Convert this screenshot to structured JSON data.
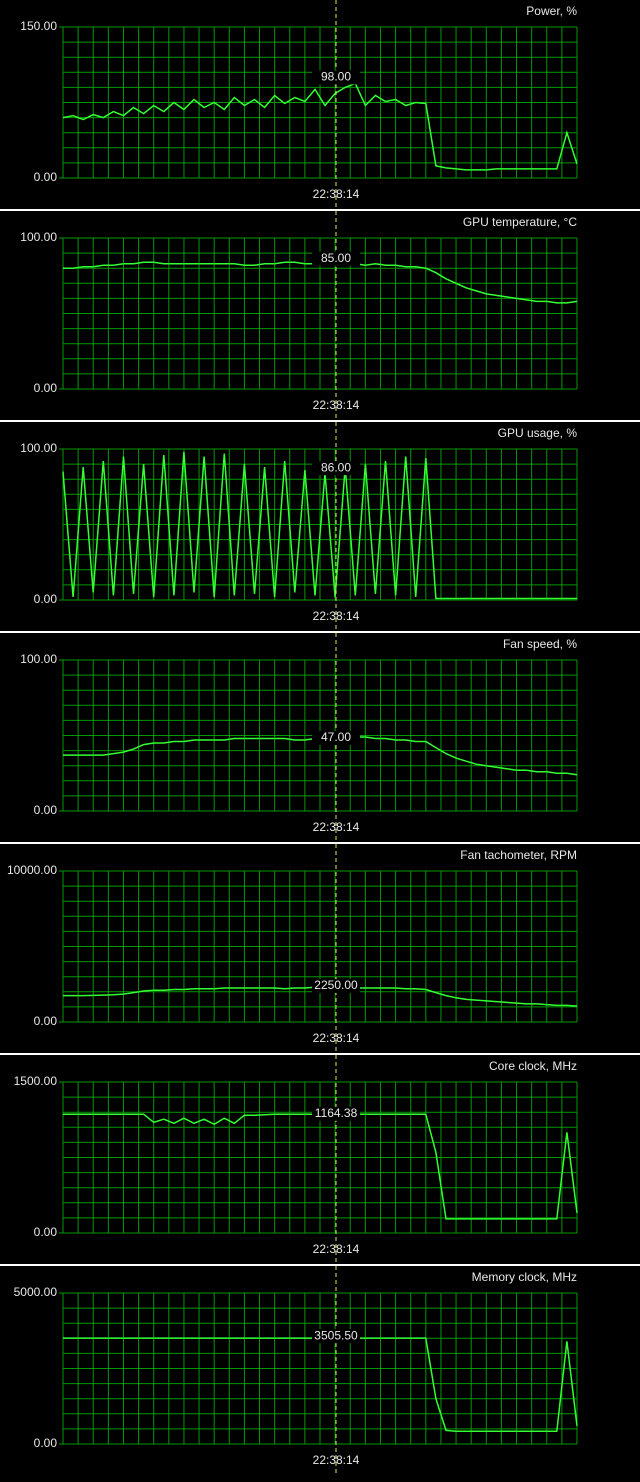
{
  "chart_data": [
    {
      "type": "line",
      "title": "Power, %",
      "color": "#33ff33",
      "grid": true,
      "ylim": [
        0,
        150
      ],
      "yticks": [
        {
          "value": 0,
          "label": "0.00"
        },
        {
          "value": 150,
          "label": "150.00"
        }
      ],
      "values": [
        60,
        62,
        58,
        63,
        60,
        66,
        62,
        70,
        64,
        72,
        66,
        75,
        68,
        78,
        70,
        75,
        68,
        80,
        72,
        78,
        70,
        82,
        74,
        80,
        76,
        88,
        72,
        84,
        90,
        94,
        72,
        82,
        76,
        78,
        72,
        75,
        74,
        12,
        10,
        9,
        8,
        8,
        8,
        9,
        9,
        9,
        9,
        9,
        9,
        9,
        45,
        14
      ],
      "cursor": {
        "x": "22:38:14",
        "value": 98,
        "value_label": "98.00"
      }
    },
    {
      "type": "line",
      "title": "GPU temperature, °C",
      "color": "#33ff33",
      "grid": true,
      "ylim": [
        0,
        100
      ],
      "yticks": [
        {
          "value": 0,
          "label": "0.00"
        },
        {
          "value": 100,
          "label": "100.00"
        }
      ],
      "values": [
        80,
        80,
        81,
        81,
        82,
        82,
        83,
        83,
        84,
        84,
        83,
        83,
        83,
        83,
        83,
        83,
        83,
        83,
        82,
        82,
        83,
        83,
        84,
        84,
        83,
        83,
        84,
        85,
        84,
        83,
        82,
        83,
        82,
        82,
        81,
        81,
        80,
        77,
        73,
        70,
        67,
        65,
        63,
        62,
        61,
        60,
        59,
        58,
        58,
        57,
        57,
        58
      ],
      "cursor": {
        "x": "22:38:14",
        "value": 85,
        "value_label": "85.00"
      }
    },
    {
      "type": "line",
      "title": "GPU usage, %",
      "color": "#33ff33",
      "grid": true,
      "ylim": [
        0,
        100
      ],
      "yticks": [
        {
          "value": 0,
          "label": "0.00"
        },
        {
          "value": 100,
          "label": "100.00"
        }
      ],
      "values": [
        85,
        2,
        88,
        5,
        92,
        3,
        95,
        4,
        90,
        2,
        96,
        3,
        98,
        5,
        95,
        2,
        97,
        3,
        90,
        4,
        88,
        2,
        92,
        5,
        86,
        3,
        84,
        2,
        88,
        3,
        90,
        4,
        92,
        3,
        95,
        2,
        94,
        1,
        1,
        1,
        1,
        1,
        1,
        1,
        1,
        1,
        1,
        1,
        1,
        1,
        1,
        1
      ],
      "cursor": {
        "x": "22:38:14",
        "value": 86,
        "value_label": "86.00"
      }
    },
    {
      "type": "line",
      "title": "Fan speed, %",
      "color": "#33ff33",
      "grid": true,
      "ylim": [
        0,
        100
      ],
      "yticks": [
        {
          "value": 0,
          "label": "0.00"
        },
        {
          "value": 100,
          "label": "100.00"
        }
      ],
      "values": [
        37,
        37,
        37,
        37,
        37,
        38,
        39,
        41,
        44,
        45,
        45,
        46,
        46,
        47,
        47,
        47,
        47,
        48,
        48,
        48,
        48,
        48,
        48,
        47,
        47,
        48,
        48,
        49,
        49,
        49,
        49,
        48,
        48,
        47,
        47,
        46,
        46,
        42,
        38,
        35,
        33,
        31,
        30,
        29,
        28,
        27,
        27,
        26,
        26,
        25,
        25,
        24
      ],
      "cursor": {
        "x": "22:38:14",
        "value": 47,
        "value_label": "47.00"
      }
    },
    {
      "type": "line",
      "title": "Fan tachometer, RPM",
      "color": "#33ff33",
      "grid": true,
      "ylim": [
        0,
        10000
      ],
      "yticks": [
        {
          "value": 0,
          "label": "0.00"
        },
        {
          "value": 10000,
          "label": "10000.00"
        }
      ],
      "values": [
        1750,
        1750,
        1750,
        1760,
        1780,
        1800,
        1850,
        1950,
        2050,
        2100,
        2100,
        2150,
        2150,
        2200,
        2200,
        2200,
        2250,
        2250,
        2250,
        2250,
        2250,
        2250,
        2200,
        2250,
        2250,
        2300,
        2300,
        2250,
        2250,
        2250,
        2250,
        2250,
        2250,
        2250,
        2200,
        2200,
        2150,
        1950,
        1750,
        1600,
        1500,
        1450,
        1400,
        1350,
        1300,
        1250,
        1200,
        1200,
        1150,
        1100,
        1100,
        1050
      ],
      "cursor": {
        "x": "22:38:14",
        "value": 2250,
        "value_label": "2250.00"
      }
    },
    {
      "type": "line",
      "title": "Core clock, MHz",
      "color": "#33ff33",
      "grid": true,
      "ylim": [
        0,
        1500
      ],
      "yticks": [
        {
          "value": 0,
          "label": "0.00"
        },
        {
          "value": 1500,
          "label": "1500.00"
        }
      ],
      "values": [
        1180,
        1180,
        1180,
        1180,
        1180,
        1180,
        1180,
        1180,
        1180,
        1100,
        1130,
        1090,
        1140,
        1090,
        1130,
        1080,
        1140,
        1090,
        1170,
        1170,
        1175,
        1180,
        1180,
        1180,
        1180,
        1180,
        1180,
        1180,
        1180,
        1180,
        1180,
        1180,
        1180,
        1180,
        1180,
        1180,
        1180,
        800,
        140,
        140,
        140,
        140,
        140,
        140,
        140,
        140,
        140,
        140,
        140,
        140,
        1000,
        200
      ],
      "cursor": {
        "x": "22:38:14",
        "value": 1164.38,
        "value_label": "1164.38"
      }
    },
    {
      "type": "line",
      "title": "Memory clock, MHz",
      "color": "#33ff33",
      "grid": true,
      "ylim": [
        0,
        5000
      ],
      "yticks": [
        {
          "value": 0,
          "label": "0.00"
        },
        {
          "value": 5000,
          "label": "5000.00"
        }
      ],
      "values": [
        3505.5,
        3505.5,
        3505.5,
        3505.5,
        3505.5,
        3505.5,
        3505.5,
        3505.5,
        3505.5,
        3505.5,
        3505.5,
        3505.5,
        3505.5,
        3505.5,
        3505.5,
        3505.5,
        3505.5,
        3505.5,
        3505.5,
        3505.5,
        3505.5,
        3505.5,
        3505.5,
        3505.5,
        3505.5,
        3505.5,
        3505.5,
        3505.5,
        3505.5,
        3505.5,
        3505.5,
        3505.5,
        3505.5,
        3505.5,
        3505.5,
        3505.5,
        3505.5,
        1500,
        450,
        420,
        420,
        420,
        420,
        420,
        420,
        420,
        420,
        420,
        420,
        420,
        3400,
        600
      ],
      "cursor": {
        "x": "22:38:14",
        "value": 3505.5,
        "value_label": "3505.50"
      }
    }
  ]
}
